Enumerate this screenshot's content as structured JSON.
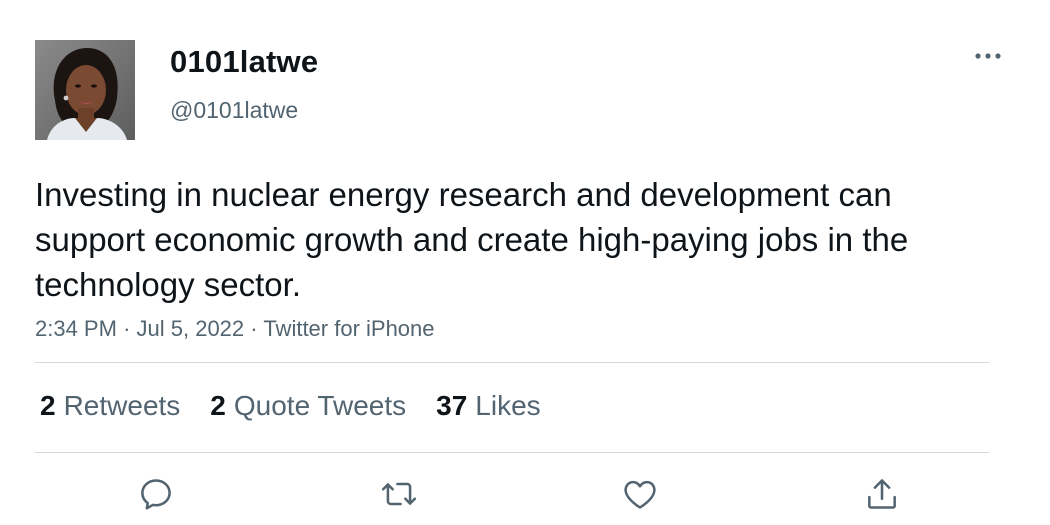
{
  "author": {
    "display_name": "0101latwe",
    "handle": "@0101latwe"
  },
  "tweet": {
    "text": "Investing in nuclear energy research and development can support economic growth and create high-paying jobs in the technology sector.",
    "time": "2:34 PM",
    "date": "Jul 5, 2022",
    "source": "Twitter for iPhone",
    "separator": "·"
  },
  "stats": {
    "retweets": {
      "count": "2",
      "label": "Retweets"
    },
    "quotes": {
      "count": "2",
      "label": "Quote Tweets"
    },
    "likes": {
      "count": "37",
      "label": "Likes"
    }
  },
  "icons": {
    "more": "more-horizontal-icon",
    "reply": "reply-icon",
    "retweet": "retweet-icon",
    "like": "heart-icon",
    "share": "share-icon"
  },
  "colors": {
    "text_primary": "#0f1419",
    "text_secondary": "#536471",
    "divider": "#cfd9de",
    "icon": "#536471"
  }
}
